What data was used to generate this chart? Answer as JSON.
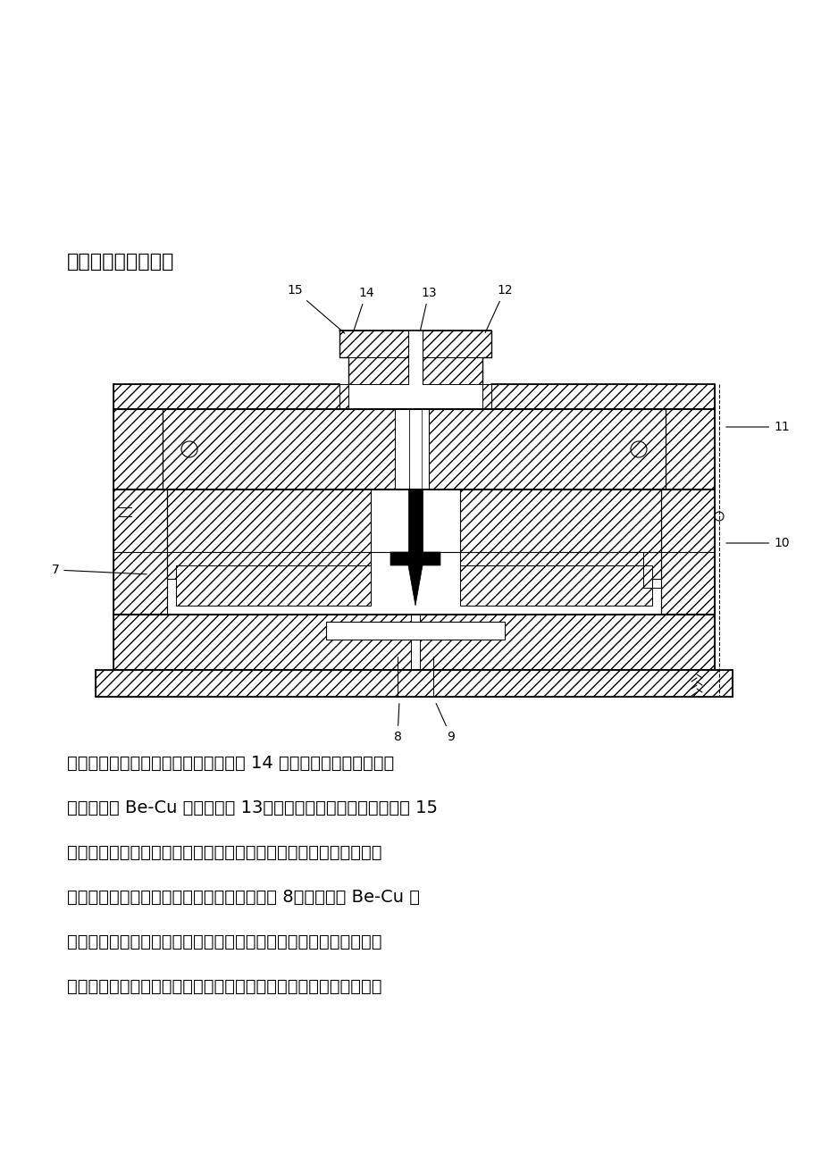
{
  "title": "窥视镜热流道注塑模",
  "background_color": "#ffffff",
  "text_color": "#000000",
  "body_lines": [
    "工作原理：带有阴螺纹的开式机床喷嘴 14 拧在注塑机的料筒上，喷",
    "嘴上安装有 Be-Cu 制的喷嘴头 13，它与加热主流道衬套的减压腔 15",
    "相配合。设置减压腔是为了在喷嘴退回时，防止加热主流道衬套塑料",
    "的流涎。主流道衬套前端设有一个二级喷嘴头 8，它也是由 Be-Cu 材",
    "料制作的，二级喷嘴头的尖头伸至型腔，且形成一个环形浇口，这种",
    "形式的喷嘴的优点是浇口和制品能干净利落的断开。模具的工作过程"
  ]
}
